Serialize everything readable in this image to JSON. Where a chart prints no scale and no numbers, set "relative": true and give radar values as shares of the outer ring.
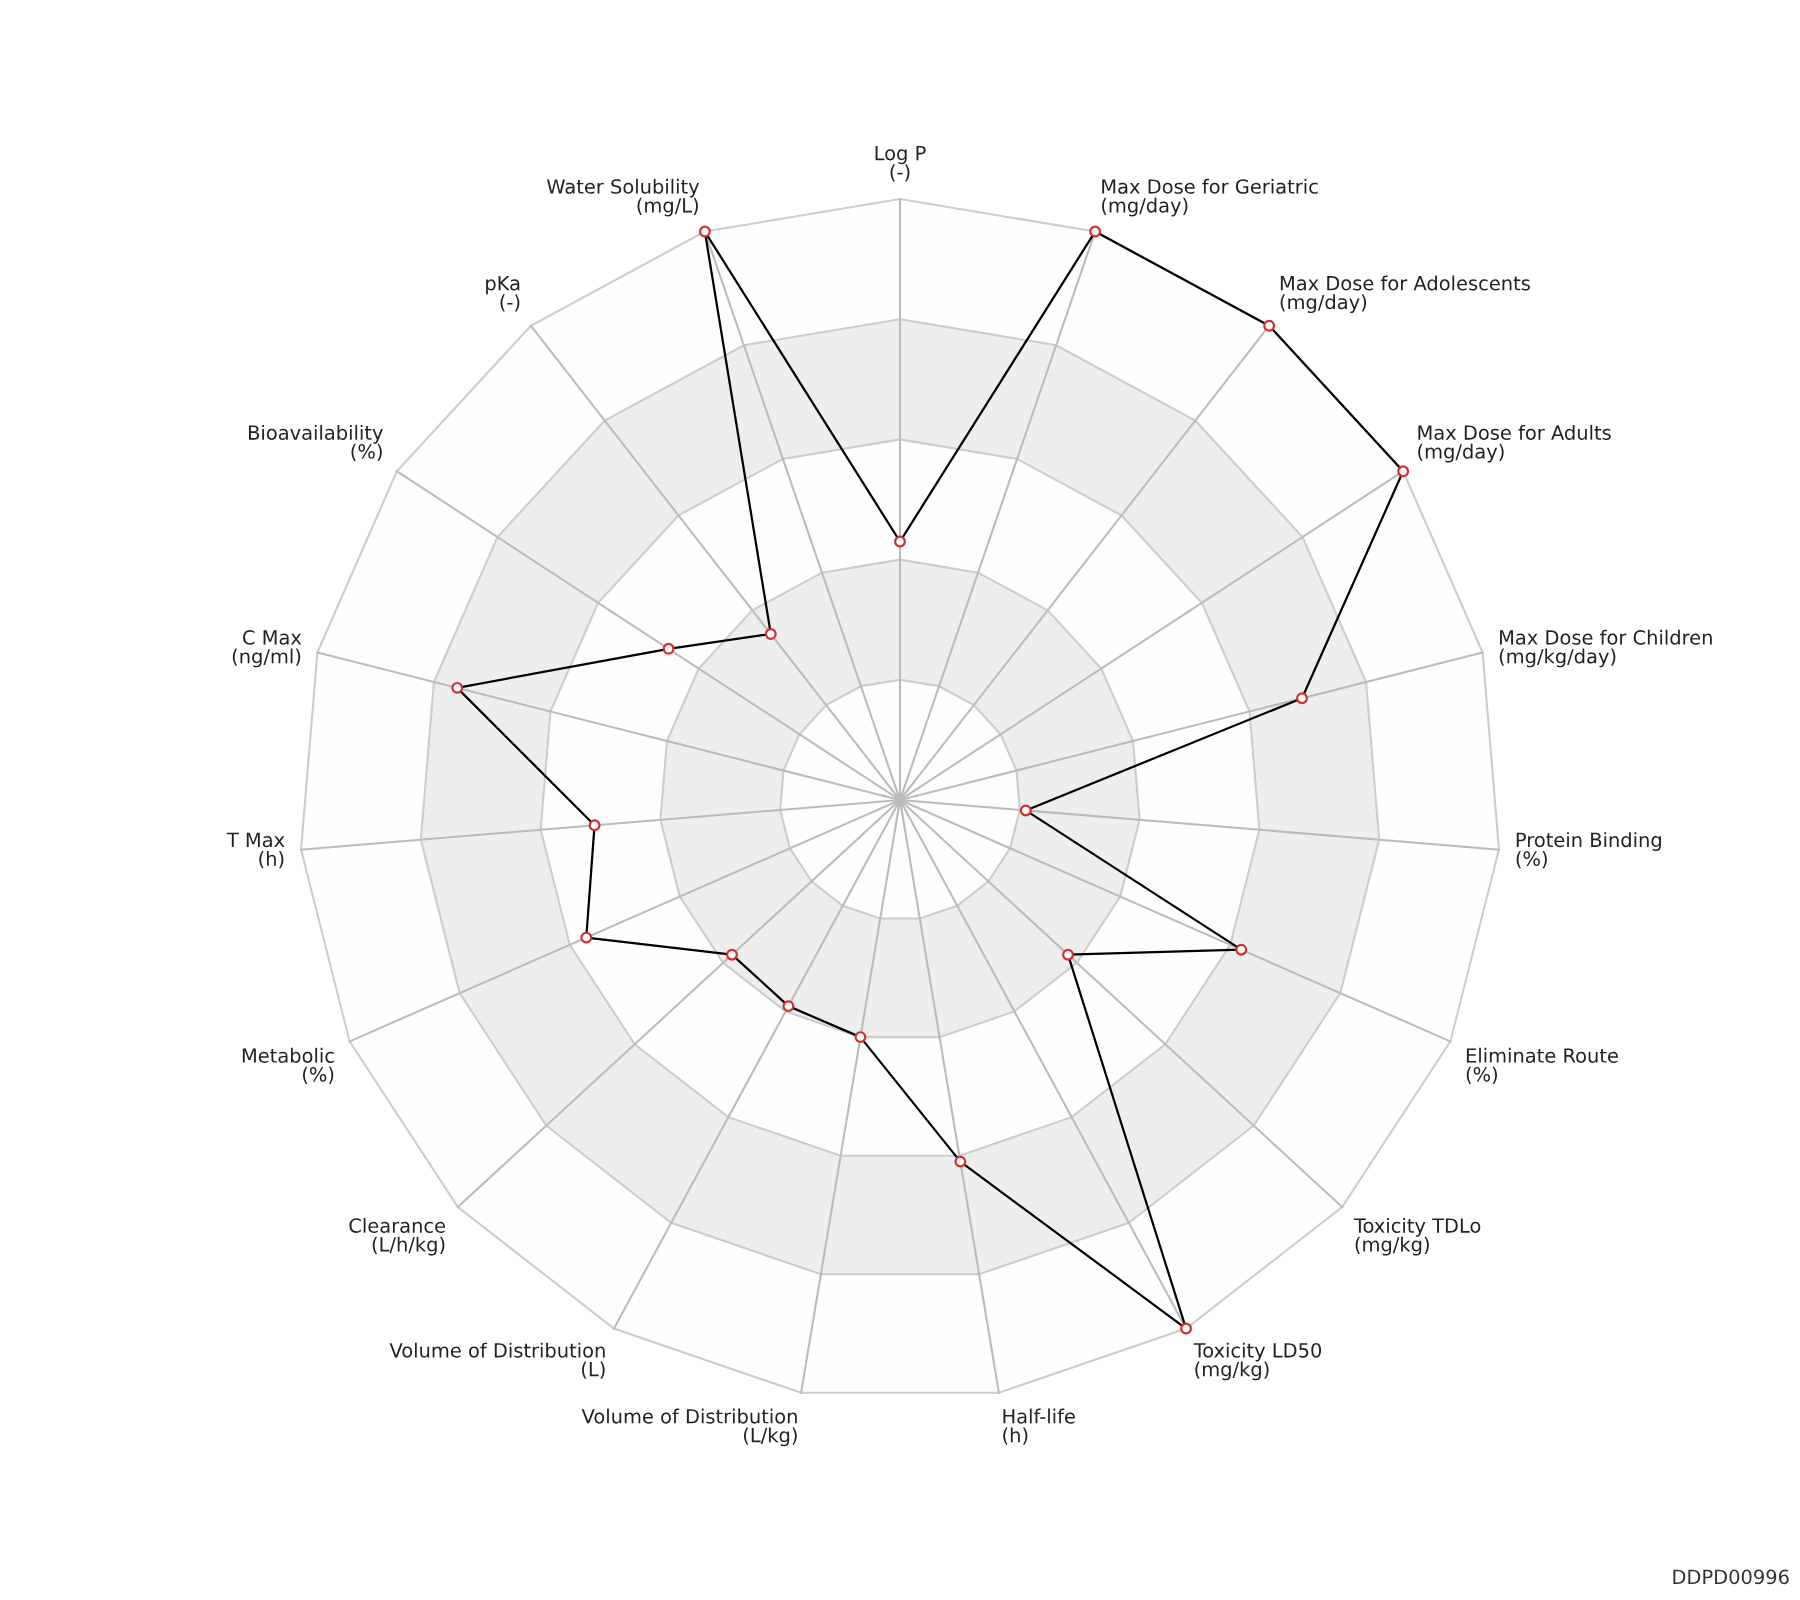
{
  "chart_data": {
    "type": "radar",
    "relative": true,
    "grid": true,
    "marker": "circle",
    "line_style": "solid",
    "categories": [
      "Log P\n(-)",
      "Max Dose for Geriatric\n(mg/day)",
      "Max Dose for Adolescents\n(mg/day)",
      "Max Dose for Adults\n(mg/day)",
      "Max Dose for Children\n(mg/kg/day)",
      "Protein Binding\n(%)",
      "Eliminate Route\n(%)",
      "Toxicity TDLo\n(mg/kg)",
      "Toxicity LD50\n(mg/kg)",
      "Half-life\n(h)",
      "Volume of Distribution\n(L/kg)",
      "Volume of Distribution\n(L)",
      "Clearance\n(L/h/kg)",
      "Metabolic\n(%)",
      "T Max\n(h)",
      "C Max\n(ng/ml)",
      "Bioavailability\n(%)",
      "pKa\n(-)",
      "Water Solubility\n(mg/L)"
    ],
    "series": [
      {
        "color": "#000000",
        "values": [
          0.43,
          1.0,
          1.0,
          1.0,
          0.69,
          0.21,
          0.62,
          0.38,
          1.0,
          0.61,
          0.4,
          0.39,
          0.38,
          0.57,
          0.51,
          0.76,
          0.46,
          0.35,
          1.0
        ]
      }
    ],
    "annotations": [
      "DDPD00996"
    ]
  }
}
